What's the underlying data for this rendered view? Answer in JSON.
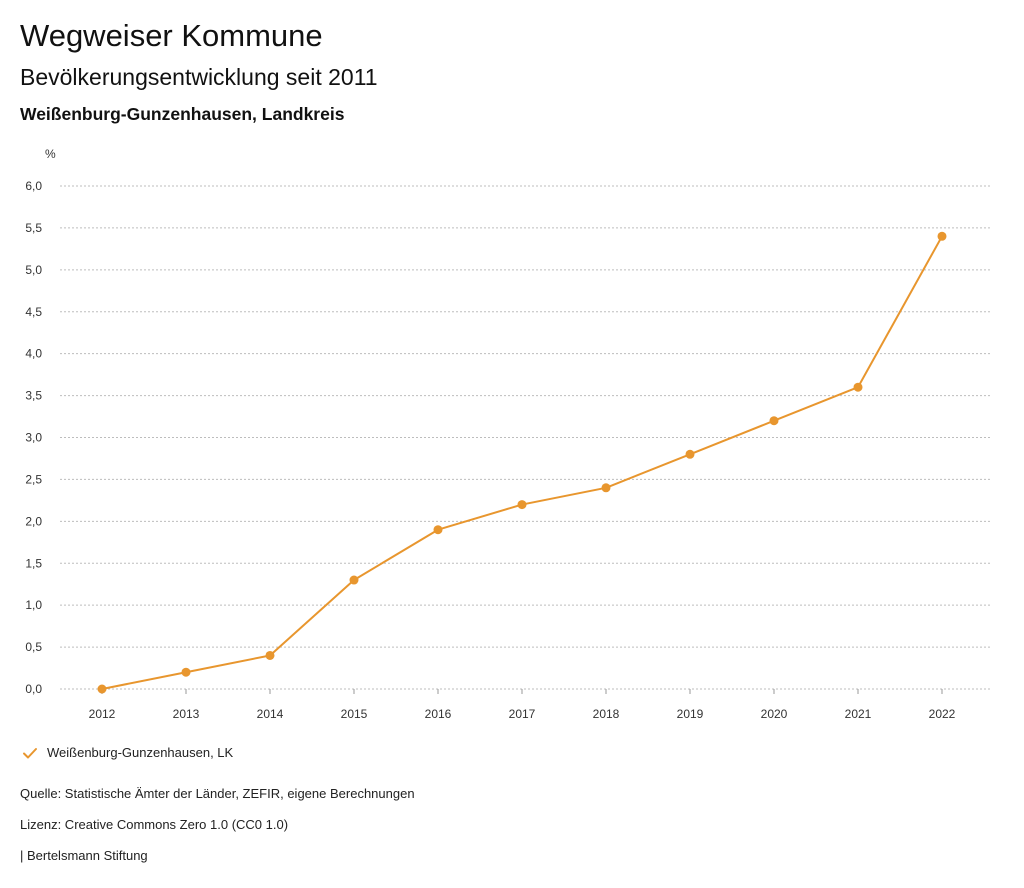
{
  "header": {
    "title": "Wegweiser Kommune",
    "subtitle": "Bevölkerungsentwicklung seit 2011",
    "region": "Weißenburg-Gunzenhausen, Landkreis"
  },
  "chart_data": {
    "type": "line",
    "unit_label": "%",
    "x": [
      "2012",
      "2013",
      "2014",
      "2015",
      "2016",
      "2017",
      "2018",
      "2019",
      "2020",
      "2021",
      "2022"
    ],
    "series": [
      {
        "name": "Weißenburg-Gunzenhausen, LK",
        "color": "#e8962e",
        "values": [
          0.0,
          0.2,
          0.4,
          1.3,
          1.9,
          2.2,
          2.4,
          2.8,
          3.2,
          3.6,
          5.4
        ]
      }
    ],
    "ylim": [
      0,
      6
    ],
    "yticks": [
      "0,0",
      "0,5",
      "1,0",
      "1,5",
      "2,0",
      "2,5",
      "3,0",
      "3,5",
      "4,0",
      "4,5",
      "5,0",
      "5,5",
      "6,0"
    ],
    "grid": true,
    "legend": "bottom-left"
  },
  "footer": {
    "source": "Quelle: Statistische Ämter der Länder, ZEFIR, eigene Berechnungen",
    "license": "Lizenz: Creative Commons Zero 1.0 (CC0 1.0)",
    "brand": "| Bertelsmann Stiftung"
  }
}
